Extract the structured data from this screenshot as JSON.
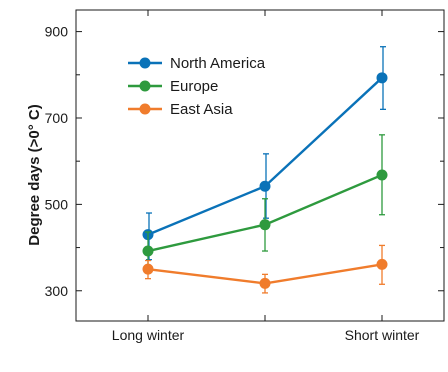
{
  "chart_data": {
    "type": "line",
    "title": "",
    "xlabel": "",
    "ylabel": "Degree days (>0° C)",
    "categories": [
      "Long winter",
      "",
      "Short winter"
    ],
    "ylim": [
      230,
      950
    ],
    "yticks": [
      300,
      500,
      700,
      900
    ],
    "grid": false,
    "legend": "top-left",
    "series": [
      {
        "name": "North America",
        "color": "#0a72b8",
        "values": [
          430,
          542,
          793
        ],
        "err_low": [
          372,
          468,
          720
        ],
        "err_high": [
          480,
          617,
          865
        ]
      },
      {
        "name": "Europe",
        "color": "#2e9a3e",
        "values": [
          392,
          453,
          568
        ],
        "err_low": [
          348,
          392,
          476
        ],
        "err_high": [
          436,
          513,
          661
        ]
      },
      {
        "name": "East Asia",
        "color": "#f07c2c",
        "values": [
          350,
          317,
          361
        ],
        "err_low": [
          328,
          295,
          315
        ],
        "err_high": [
          370,
          338,
          405
        ]
      }
    ]
  }
}
